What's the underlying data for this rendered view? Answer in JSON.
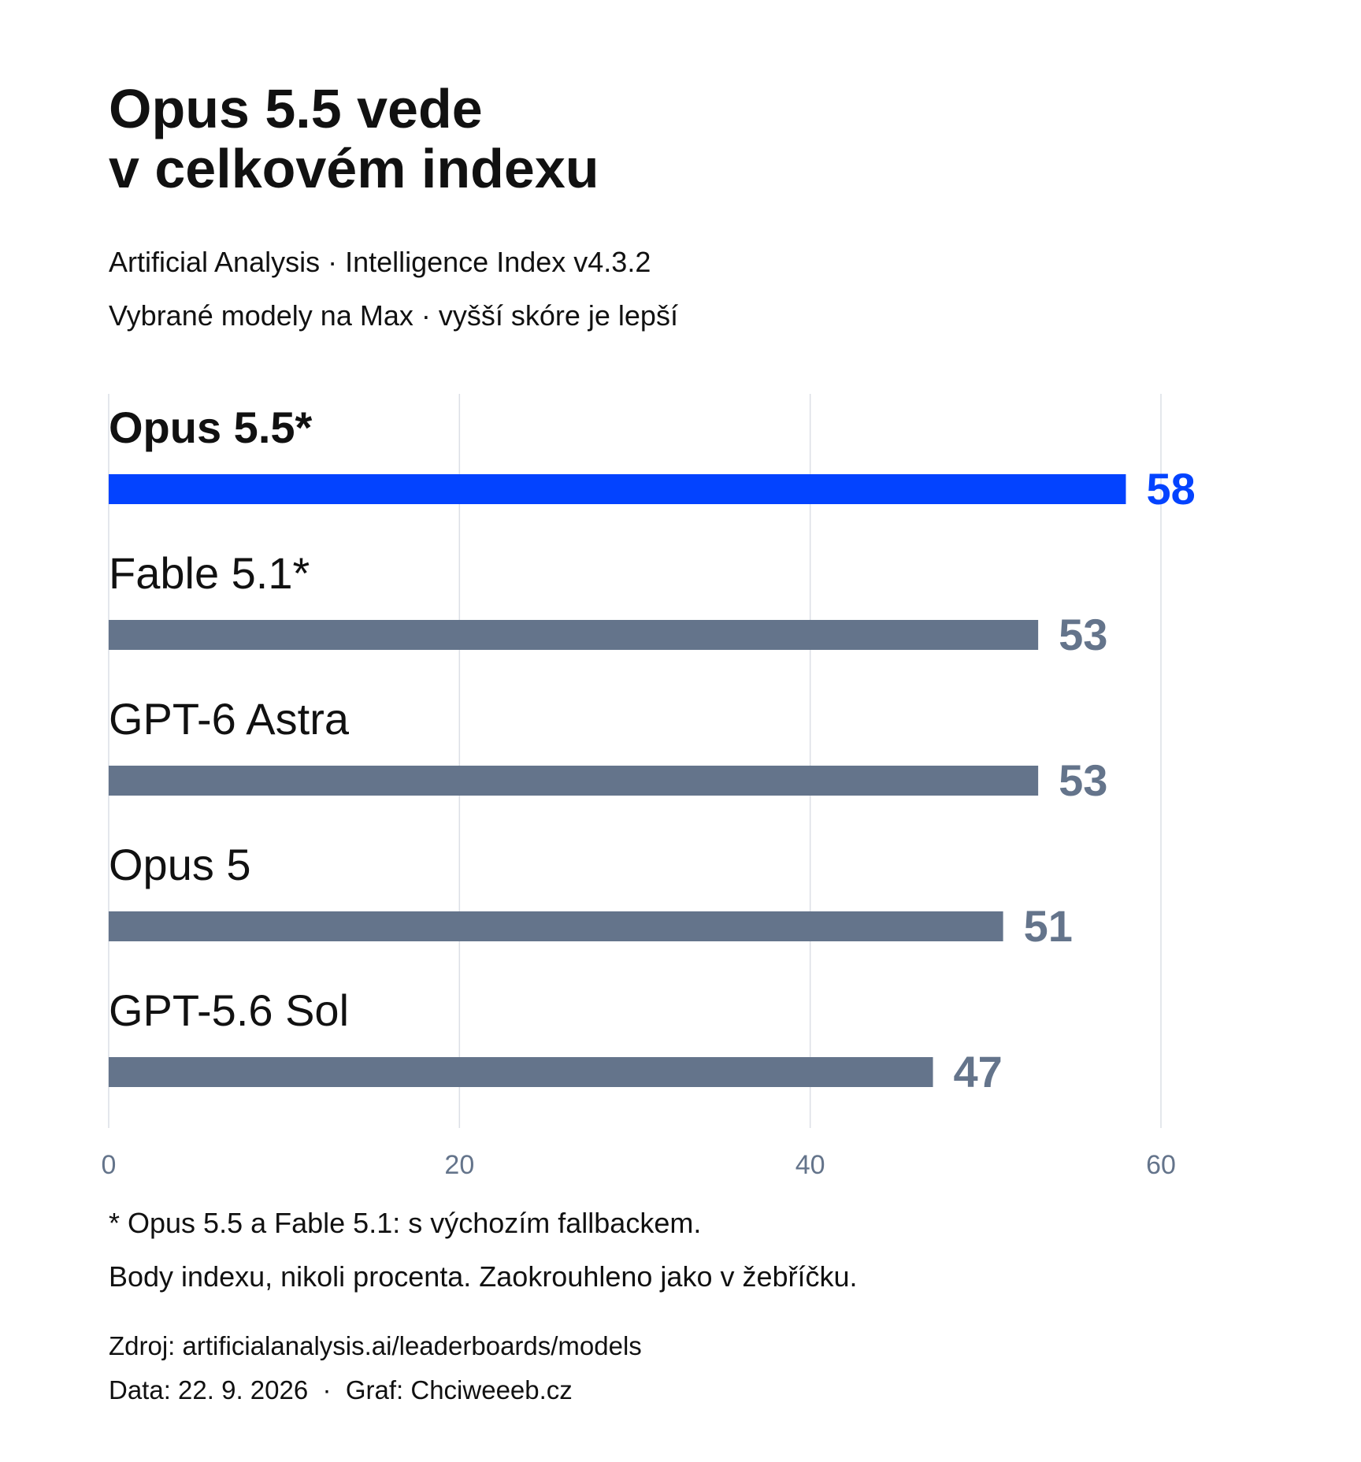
{
  "header": {
    "title_line1": "Opus 5.5 vede",
    "title_line2": "v celkovém indexu",
    "subtitle1": "Artificial Analysis · Intelligence Index v4.3.2",
    "subtitle2": "Vybrané modely na Max · vyšší skóre je lepší"
  },
  "chart_data": {
    "type": "bar",
    "orientation": "horizontal",
    "categories": [
      "Opus 5.5*",
      "Fable 5.1*",
      "GPT-6 Astra",
      "Opus 5",
      "GPT-5.6 Sol"
    ],
    "values": [
      58,
      53,
      53,
      51,
      47
    ],
    "highlight_index": 0,
    "xlim": [
      0,
      60
    ],
    "x_ticks": [
      "0",
      "20",
      "40",
      "60"
    ],
    "grid": true,
    "colors": {
      "highlight": "#0343FF",
      "default": "#64748B",
      "grid": "#DCDFE6",
      "tick": "#64748B"
    }
  },
  "footnotes": {
    "note1": "* Opus 5.5 a Fable 5.1: s výchozím fallbackem.",
    "note2": "Body indexu, nikoli procenta. Zaokrouhleno jako v žebříčku.",
    "source": "Zdroj: artificialanalysis.ai/leaderboards/models",
    "credit": "Data: 22. 9. 2026  ·  Graf: Chciweeeb.cz"
  }
}
